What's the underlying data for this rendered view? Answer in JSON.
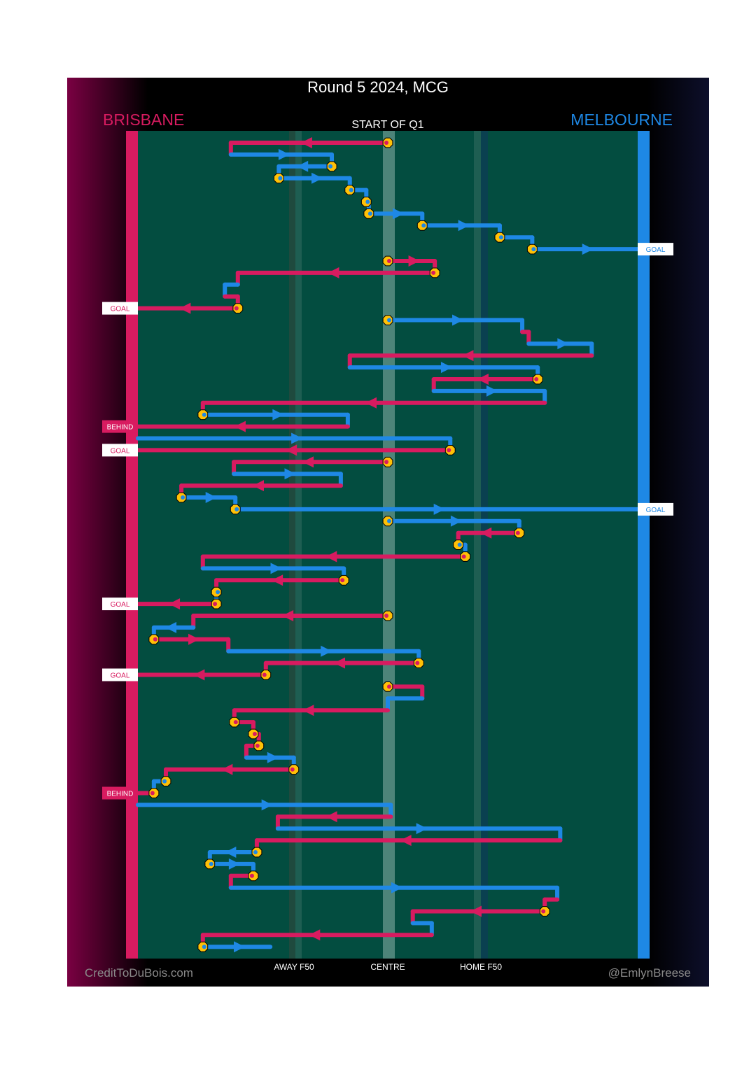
{
  "title": "Round 5 2024, MCG",
  "teams": {
    "home": {
      "name": "BRISBANE",
      "color": "#d81b60"
    },
    "away": {
      "name": "MELBOURNE",
      "color": "#1e88e5"
    }
  },
  "period_label": "START OF Q1",
  "axis_labels": {
    "away_f50": "AWAY F50",
    "centre": "CENTRE",
    "home_f50": "HOME F50"
  },
  "credits": {
    "left": "CreditToDuBois.com",
    "right": "@EmlynBreese"
  },
  "marker_color": "#ffc107",
  "field_color": "#034d40",
  "position_units": "percent of ground from Brisbane goal (0) to Melbourne goal (100)",
  "chart_data": {
    "type": "possession-chain",
    "possessions": [
      {
        "team": "BRISBANE",
        "from": 50,
        "to": 18.6,
        "stoppage": true
      },
      {
        "team": "MELBOURNE",
        "from": 18.6,
        "to": 38.8
      },
      {
        "team": "MELBOURNE",
        "from": 38.8,
        "to": 28.2,
        "stoppage": true
      },
      {
        "team": "MELBOURNE",
        "from": 28.2,
        "to": 42.4,
        "stoppage": true
      },
      {
        "team": "MELBOURNE",
        "from": 42.4,
        "to": 45.7,
        "stoppage": true
      },
      {
        "team": "MELBOURNE",
        "from": 45.7,
        "to": 46.2,
        "stoppage": true
      },
      {
        "team": "MELBOURNE",
        "from": 46.2,
        "to": 56.9,
        "stoppage": true
      },
      {
        "team": "MELBOURNE",
        "from": 56.9,
        "to": 72.4,
        "stoppage": true
      },
      {
        "team": "MELBOURNE",
        "from": 72.4,
        "to": 78.9,
        "stoppage": true
      },
      {
        "team": "MELBOURNE",
        "from": 78.9,
        "to": 100,
        "stoppage": true,
        "result": "GOAL"
      },
      {
        "team": "BRISBANE",
        "from": 50,
        "to": 59.4,
        "stoppage": true,
        "restart": true
      },
      {
        "team": "BRISBANE",
        "from": 59.4,
        "to": 20.0,
        "stoppage": true
      },
      {
        "team": "MELBOURNE",
        "from": 20.0,
        "to": 17.4
      },
      {
        "team": "BRISBANE",
        "from": 17.4,
        "to": 20.0
      },
      {
        "team": "BRISBANE",
        "from": 20.0,
        "to": 0,
        "stoppage": true,
        "result": "GOAL"
      },
      {
        "team": "MELBOURNE",
        "from": 50,
        "to": 76.9,
        "stoppage": true,
        "restart": true
      },
      {
        "team": "BRISBANE",
        "from": 76.9,
        "to": 78.2
      },
      {
        "team": "MELBOURNE",
        "from": 78.2,
        "to": 90.8
      },
      {
        "team": "BRISBANE",
        "from": 90.8,
        "to": 42.4
      },
      {
        "team": "MELBOURNE",
        "from": 42.4,
        "to": 80.0
      },
      {
        "team": "BRISBANE",
        "from": 80.0,
        "to": 59.2,
        "stoppage": true
      },
      {
        "team": "MELBOURNE",
        "from": 59.2,
        "to": 81.4
      },
      {
        "team": "BRISBANE",
        "from": 81.4,
        "to": 13.0
      },
      {
        "team": "MELBOURNE",
        "from": 13.0,
        "to": 42.0,
        "stoppage": true
      },
      {
        "team": "BRISBANE",
        "from": 42.0,
        "to": 0,
        "result": "BEHIND"
      },
      {
        "team": "MELBOURNE",
        "from": 0,
        "to": 62.5,
        "restart": true
      },
      {
        "team": "BRISBANE",
        "from": 62.5,
        "to": 0,
        "stoppage": true,
        "result": "GOAL"
      },
      {
        "team": "BRISBANE",
        "from": 50,
        "to": 19.2,
        "stoppage": true,
        "restart": true
      },
      {
        "team": "MELBOURNE",
        "from": 19.2,
        "to": 40.6
      },
      {
        "team": "BRISBANE",
        "from": 40.6,
        "to": 8.7
      },
      {
        "team": "MELBOURNE",
        "from": 8.7,
        "to": 19.5,
        "stoppage": true
      },
      {
        "team": "MELBOURNE",
        "from": 19.5,
        "to": 100,
        "stoppage": true,
        "result": "GOAL"
      },
      {
        "team": "MELBOURNE",
        "from": 50,
        "to": 76.3,
        "stoppage": true,
        "restart": true
      },
      {
        "team": "BRISBANE",
        "from": 76.3,
        "to": 64.1,
        "stoppage": true
      },
      {
        "team": "MELBOURNE",
        "from": 64.1,
        "to": 65.5,
        "stoppage": true
      },
      {
        "team": "BRISBANE",
        "from": 65.5,
        "to": 13.0,
        "stoppage": true
      },
      {
        "team": "MELBOURNE",
        "from": 13.0,
        "to": 41.2
      },
      {
        "team": "BRISBANE",
        "from": 41.2,
        "to": 15.7,
        "stoppage": true
      },
      {
        "team": "MELBOURNE",
        "from": 15.7,
        "to": 15.7,
        "stoppage": true
      },
      {
        "team": "BRISBANE",
        "from": 15.7,
        "to": 0,
        "stoppage": true,
        "result": "GOAL"
      },
      {
        "team": "BRISBANE",
        "from": 50,
        "to": 11.1,
        "stoppage": true,
        "restart": true
      },
      {
        "team": "MELBOURNE",
        "from": 11.1,
        "to": 3.2
      },
      {
        "team": "BRISBANE",
        "from": 3.2,
        "to": 18.1,
        "stoppage": true
      },
      {
        "team": "MELBOURNE",
        "from": 18.1,
        "to": 56.2
      },
      {
        "team": "BRISBANE",
        "from": 56.2,
        "to": 25.6,
        "stoppage": true
      },
      {
        "team": "BRISBANE",
        "from": 25.6,
        "to": 0,
        "stoppage": true,
        "result": "GOAL"
      },
      {
        "team": "BRISBANE",
        "from": 50,
        "to": 56.9,
        "stoppage": true,
        "restart": true
      },
      {
        "team": "MELBOURNE",
        "from": 56.9,
        "to": 50
      },
      {
        "team": "BRISBANE",
        "from": 50,
        "to": 19.3
      },
      {
        "team": "BRISBANE",
        "from": 19.3,
        "to": 23.1,
        "stoppage": true
      },
      {
        "team": "BRISBANE",
        "from": 23.1,
        "to": 24.2,
        "stoppage": true
      },
      {
        "team": "BRISBANE",
        "from": 24.2,
        "to": 21.7,
        "stoppage": true
      },
      {
        "team": "MELBOURNE",
        "from": 21.7,
        "to": 31.2
      },
      {
        "team": "BRISBANE",
        "from": 31.2,
        "to": 5.6,
        "stoppage": true
      },
      {
        "team": "MELBOURNE",
        "from": 5.6,
        "to": 3.2,
        "stoppage": true
      },
      {
        "team": "BRISBANE",
        "from": 3.2,
        "to": 0,
        "stoppage": true,
        "result": "BEHIND"
      },
      {
        "team": "MELBOURNE",
        "from": 0,
        "to": 50.6,
        "restart": true
      },
      {
        "team": "BRISBANE",
        "from": 50.6,
        "to": 28.0
      },
      {
        "team": "MELBOURNE",
        "from": 28.0,
        "to": 84.5
      },
      {
        "team": "BRISBANE",
        "from": 84.5,
        "to": 23.8
      },
      {
        "team": "MELBOURNE",
        "from": 23.8,
        "to": 14.4,
        "stoppage": true
      },
      {
        "team": "MELBOURNE",
        "from": 14.4,
        "to": 23.1,
        "stoppage": true
      },
      {
        "team": "BRISBANE",
        "from": 23.1,
        "to": 18.6,
        "stoppage": true
      },
      {
        "team": "MELBOURNE",
        "from": 18.6,
        "to": 83.9
      },
      {
        "team": "BRISBANE",
        "from": 83.9,
        "to": 81.4
      },
      {
        "team": "BRISBANE",
        "from": 81.4,
        "to": 55.0,
        "stoppage": true
      },
      {
        "team": "MELBOURNE",
        "from": 55.0,
        "to": 58.8
      },
      {
        "team": "BRISBANE",
        "from": 58.8,
        "to": 13.0
      },
      {
        "team": "MELBOURNE",
        "from": 13.0,
        "to": 26.5,
        "stoppage": true
      }
    ]
  }
}
